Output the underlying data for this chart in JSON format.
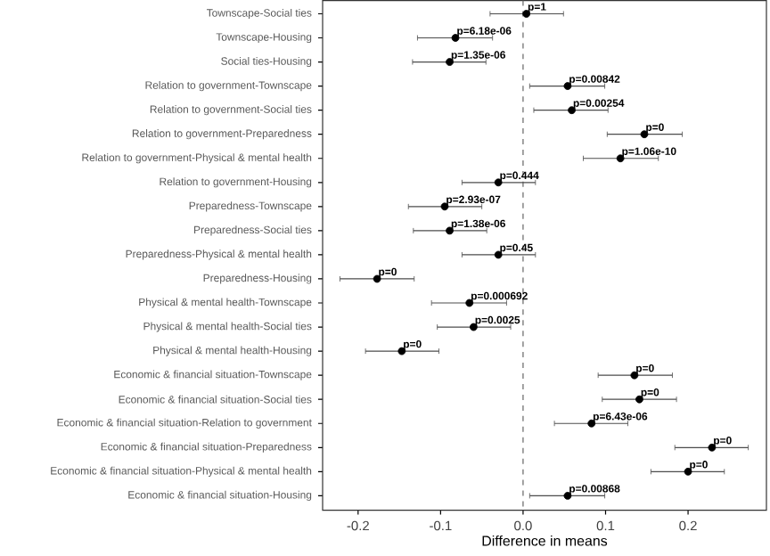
{
  "chart_data": {
    "type": "scatter",
    "orientation": "horizontal",
    "xlabel": "Difference in means",
    "categories": [
      "Townscape-Social ties",
      "Townscape-Housing",
      "Social ties-Housing",
      "Relation to government-Townscape",
      "Relation to government-Social ties",
      "Relation to government-Preparedness",
      "Relation to government-Physical & mental health",
      "Relation to government-Housing",
      "Preparedness-Townscape",
      "Preparedness-Social ties",
      "Preparedness-Physical & mental health",
      "Preparedness-Housing",
      "Physical & mental health-Townscape",
      "Physical & mental health-Social ties",
      "Physical & mental health-Housing",
      "Economic & financial situation-Townscape",
      "Economic & financial situation-Social ties",
      "Economic & financial situation-Relation to government",
      "Economic & financial situation-Preparedness",
      "Economic & financial situation-Physical & mental health",
      "Economic & financial situation-Housing"
    ],
    "values": [
      0.004,
      -0.082,
      -0.089,
      0.054,
      0.059,
      0.147,
      0.118,
      -0.03,
      -0.095,
      -0.089,
      -0.03,
      -0.177,
      -0.065,
      -0.06,
      -0.147,
      0.135,
      0.141,
      0.083,
      0.229,
      0.2,
      0.054
    ],
    "errors": [
      [
        -0.04,
        0.049
      ],
      [
        -0.128,
        -0.037
      ],
      [
        -0.134,
        -0.045
      ],
      [
        0.008,
        0.099
      ],
      [
        0.013,
        0.103
      ],
      [
        0.102,
        0.193
      ],
      [
        0.073,
        0.164
      ],
      [
        -0.074,
        0.015
      ],
      [
        -0.139,
        -0.05
      ],
      [
        -0.133,
        -0.044
      ],
      [
        -0.074,
        0.015
      ],
      [
        -0.222,
        -0.132
      ],
      [
        -0.111,
        -0.02
      ],
      [
        -0.104,
        -0.015
      ],
      [
        -0.191,
        -0.102
      ],
      [
        0.091,
        0.181
      ],
      [
        0.096,
        0.186
      ],
      [
        0.038,
        0.127
      ],
      [
        0.184,
        0.273
      ],
      [
        0.155,
        0.244
      ],
      [
        0.008,
        0.099
      ]
    ],
    "annotations": [
      {
        "text": "p=1",
        "x": 0.004,
        "y": "Townscape-Social ties"
      },
      {
        "text": "p=6.18e-06",
        "x": -0.082,
        "y": "Townscape-Housing"
      },
      {
        "text": "p=1.35e-06",
        "x": -0.089,
        "y": "Social ties-Housing"
      },
      {
        "text": "p=0.00842",
        "x": 0.054,
        "y": "Relation to government-Townscape"
      },
      {
        "text": "p=0.00254",
        "x": 0.059,
        "y": "Relation to government-Social ties"
      },
      {
        "text": "p=0",
        "x": 0.147,
        "y": "Relation to government-Preparedness"
      },
      {
        "text": "p=1.06e-10",
        "x": 0.118,
        "y": "Relation to government-Physical & mental health"
      },
      {
        "text": "p=0.444",
        "x": -0.03,
        "y": "Relation to government-Housing"
      },
      {
        "text": "p=2.93e-07",
        "x": -0.095,
        "y": "Preparedness-Townscape"
      },
      {
        "text": "p=1.38e-06",
        "x": -0.089,
        "y": "Preparedness-Social ties"
      },
      {
        "text": "p=0.45",
        "x": -0.03,
        "y": "Preparedness-Physical & mental health"
      },
      {
        "text": "p=0",
        "x": -0.177,
        "y": "Preparedness-Housing"
      },
      {
        "text": "p=0.000692",
        "x": -0.065,
        "y": "Physical & mental health-Townscape"
      },
      {
        "text": "p=0.0025",
        "x": -0.06,
        "y": "Physical & mental health-Social ties"
      },
      {
        "text": "p=0",
        "x": -0.147,
        "y": "Physical & mental health-Housing"
      },
      {
        "text": "p=0",
        "x": 0.135,
        "y": "Economic & financial situation-Townscape"
      },
      {
        "text": "p=0",
        "x": 0.141,
        "y": "Economic & financial situation-Social ties"
      },
      {
        "text": "p=6.43e-06",
        "x": 0.083,
        "y": "Economic & financial situation-Relation to government"
      },
      {
        "text": "p=0",
        "x": 0.229,
        "y": "Economic & financial situation-Preparedness"
      },
      {
        "text": "p=0",
        "x": 0.2,
        "y": "Economic & financial situation-Physical & mental health"
      },
      {
        "text": "p=0.00868",
        "x": 0.054,
        "y": "Economic & financial situation-Housing"
      }
    ],
    "color": "#000000",
    "xlim": [
      -0.243,
      0.295
    ],
    "xticks": [
      -0.2,
      -0.1,
      {
        "value": 0,
        "label": "0.0"
      },
      0.1,
      0.2
    ],
    "ref_lines": [
      {
        "axis": "x",
        "value": 0,
        "line_style": "dashed",
        "color": "#666666"
      }
    ]
  }
}
